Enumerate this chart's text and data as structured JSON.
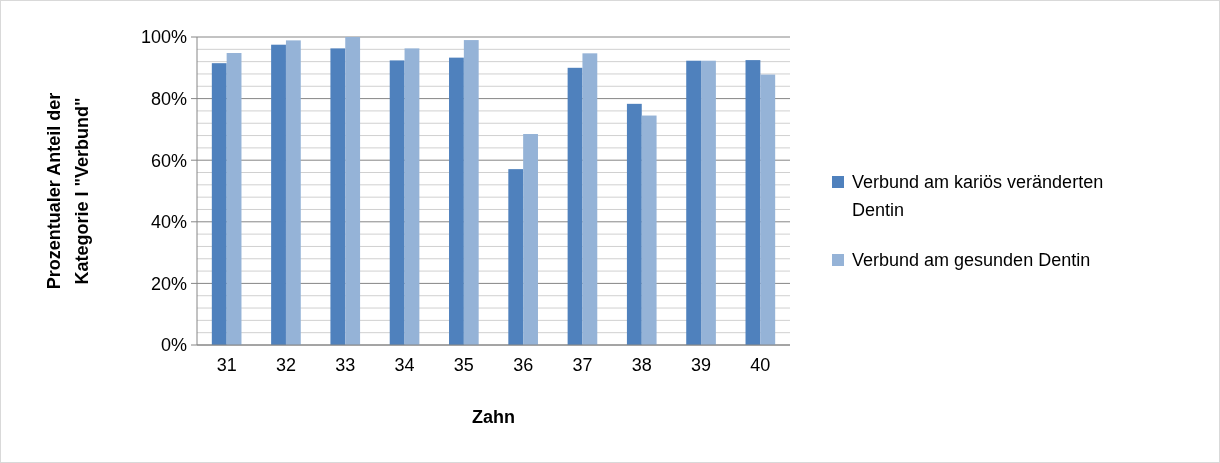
{
  "chart_data": {
    "type": "bar",
    "xlabel": "Zahn",
    "ylabel": "Prozentualer Anteil der\nKategorie I \"Verbund\"",
    "categories": [
      "31",
      "32",
      "33",
      "34",
      "35",
      "36",
      "37",
      "38",
      "39",
      "40"
    ],
    "series": [
      {
        "name": "Verbund am kariös veränderten Dentin",
        "color": "#4f81bd",
        "values": [
          91.5,
          97.5,
          96.3,
          92.4,
          93.3,
          57.1,
          90,
          78.3,
          92.3,
          92.5
        ]
      },
      {
        "name": "Verbund am gesunden Dentin",
        "color": "#95b3d7",
        "values": [
          94.8,
          98.9,
          100,
          96.3,
          99,
          68.5,
          94.7,
          74.5,
          92.3,
          87.8
        ]
      }
    ],
    "ylim": [
      0,
      100
    ],
    "yticks": [
      {
        "value": 0,
        "label": "0%"
      },
      {
        "value": 4,
        "label": null
      },
      {
        "value": 8,
        "label": null
      },
      {
        "value": 12,
        "label": null
      },
      {
        "value": 16,
        "label": null
      },
      {
        "value": 20,
        "label": "20%"
      },
      {
        "value": 24,
        "label": null
      },
      {
        "value": 28,
        "label": null
      },
      {
        "value": 32,
        "label": null
      },
      {
        "value": 36,
        "label": null
      },
      {
        "value": 40,
        "label": "40%"
      },
      {
        "value": 44,
        "label": null
      },
      {
        "value": 48,
        "label": null
      },
      {
        "value": 52,
        "label": null
      },
      {
        "value": 56,
        "label": null
      },
      {
        "value": 60,
        "label": "60%"
      },
      {
        "value": 64,
        "label": null
      },
      {
        "value": 68,
        "label": null
      },
      {
        "value": 72,
        "label": null
      },
      {
        "value": 76,
        "label": null
      },
      {
        "value": 80,
        "label": "80%"
      },
      {
        "value": 84,
        "label": null
      },
      {
        "value": 88,
        "label": null
      },
      {
        "value": 92,
        "label": null
      },
      {
        "value": 96,
        "label": null
      },
      {
        "value": 100,
        "label": "100%"
      }
    ],
    "grid": "y",
    "legend": "right"
  }
}
